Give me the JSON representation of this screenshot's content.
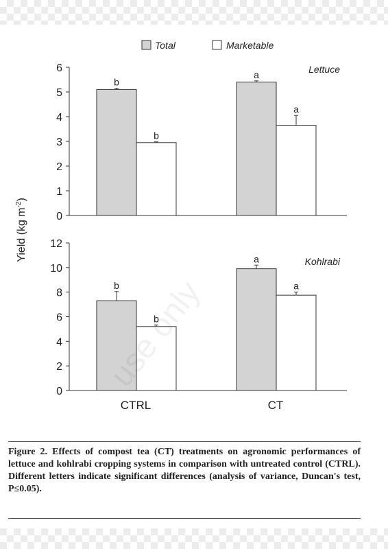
{
  "legend": {
    "items": [
      {
        "label": "Total",
        "color": "#d3d3d3"
      },
      {
        "label": "Marketable",
        "color": "#ffffff"
      }
    ]
  },
  "ylabel": "Yield (kg m",
  "ylabel_sup": "-2",
  "ylabel_end": ")",
  "categories": [
    "CTRL",
    "CT"
  ],
  "chart_data": [
    {
      "type": "bar",
      "title": "Lettuce",
      "categories": [
        "CTRL",
        "CT"
      ],
      "ylim": [
        0,
        6
      ],
      "yticks": [
        0,
        1,
        2,
        3,
        4,
        5,
        6
      ],
      "series": [
        {
          "name": "Total",
          "values": [
            5.1,
            5.4
          ],
          "errors": [
            0.05,
            0.05
          ],
          "letters": [
            "b",
            "a"
          ]
        },
        {
          "name": "Marketable",
          "values": [
            2.95,
            3.65
          ],
          "errors": [
            0.03,
            0.4
          ],
          "letters": [
            "b",
            "a"
          ]
        }
      ]
    },
    {
      "type": "bar",
      "title": "Kohlrabi",
      "categories": [
        "CTRL",
        "CT"
      ],
      "ylim": [
        0,
        12
      ],
      "yticks": [
        0,
        2,
        4,
        6,
        8,
        10,
        12
      ],
      "series": [
        {
          "name": "Total",
          "values": [
            7.3,
            9.9
          ],
          "errors": [
            0.75,
            0.3
          ],
          "letters": [
            "b",
            "a"
          ]
        },
        {
          "name": "Marketable",
          "values": [
            5.2,
            7.75
          ],
          "errors": [
            0.12,
            0.25
          ],
          "letters": [
            "b",
            "a"
          ]
        }
      ]
    }
  ],
  "caption": "Figure 2. Effects of compost tea (CT) treatments on agronomic performances of lettuce and kohlrabi cropping systems in comparison with untreated control (CTRL). Different letters indicate significant differences (analysis of variance, Duncan's test, P≤0.05).",
  "watermark": "use only"
}
